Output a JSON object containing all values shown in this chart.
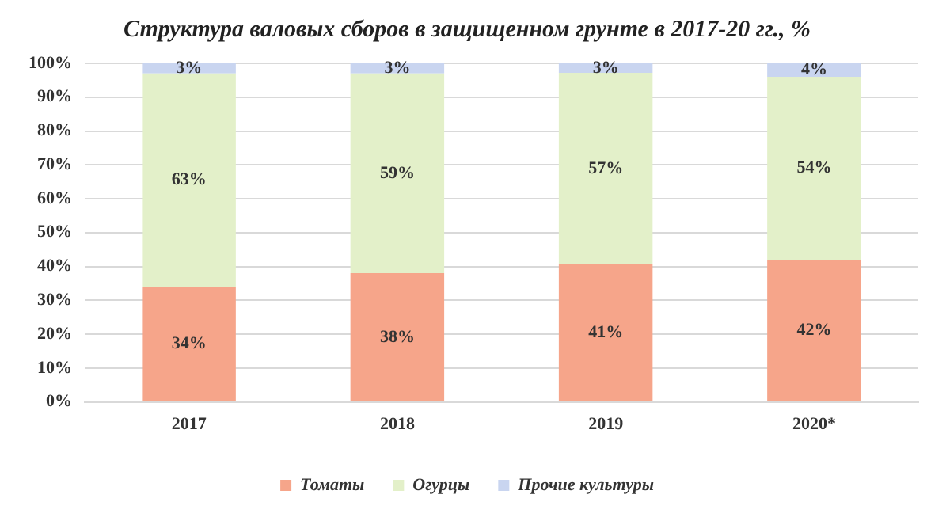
{
  "chart_data": {
    "type": "bar",
    "title": "Структура валовых сборов в защищенном грунте в 2017-20 гг., %",
    "categories": [
      "2017",
      "2018",
      "2019",
      "2020*"
    ],
    "stacked": true,
    "series": [
      {
        "name": "Томаты",
        "color": "#f6a58a",
        "values": [
          34,
          38,
          40.6,
          42
        ],
        "value_labels": [
          "34%",
          "38%",
          "41%",
          "42%"
        ]
      },
      {
        "name": "Огурцы",
        "color": "#e3f0c9",
        "values": [
          63,
          59,
          56.6,
          54
        ],
        "value_labels": [
          "63%",
          "59%",
          "57%",
          "54%"
        ]
      },
      {
        "name": "Прочие культуры",
        "color": "#c9d5f0",
        "values": [
          3,
          3,
          2.8,
          4
        ],
        "value_labels": [
          "3%",
          "3%",
          "3%",
          "4%"
        ]
      }
    ],
    "ylim": [
      0,
      100
    ],
    "yticks": [
      {
        "value": 0,
        "label": "0%"
      },
      {
        "value": 10,
        "label": "10%"
      },
      {
        "value": 20,
        "label": "20%"
      },
      {
        "value": 30,
        "label": "30%"
      },
      {
        "value": 40,
        "label": "40%"
      },
      {
        "value": 50,
        "label": "50%"
      },
      {
        "value": 60,
        "label": "60%"
      },
      {
        "value": 70,
        "label": "70%"
      },
      {
        "value": 80,
        "label": "80%"
      },
      {
        "value": 90,
        "label": "90%"
      },
      {
        "value": 100,
        "label": "100%"
      }
    ],
    "grid": "y",
    "legend": "bottom"
  }
}
